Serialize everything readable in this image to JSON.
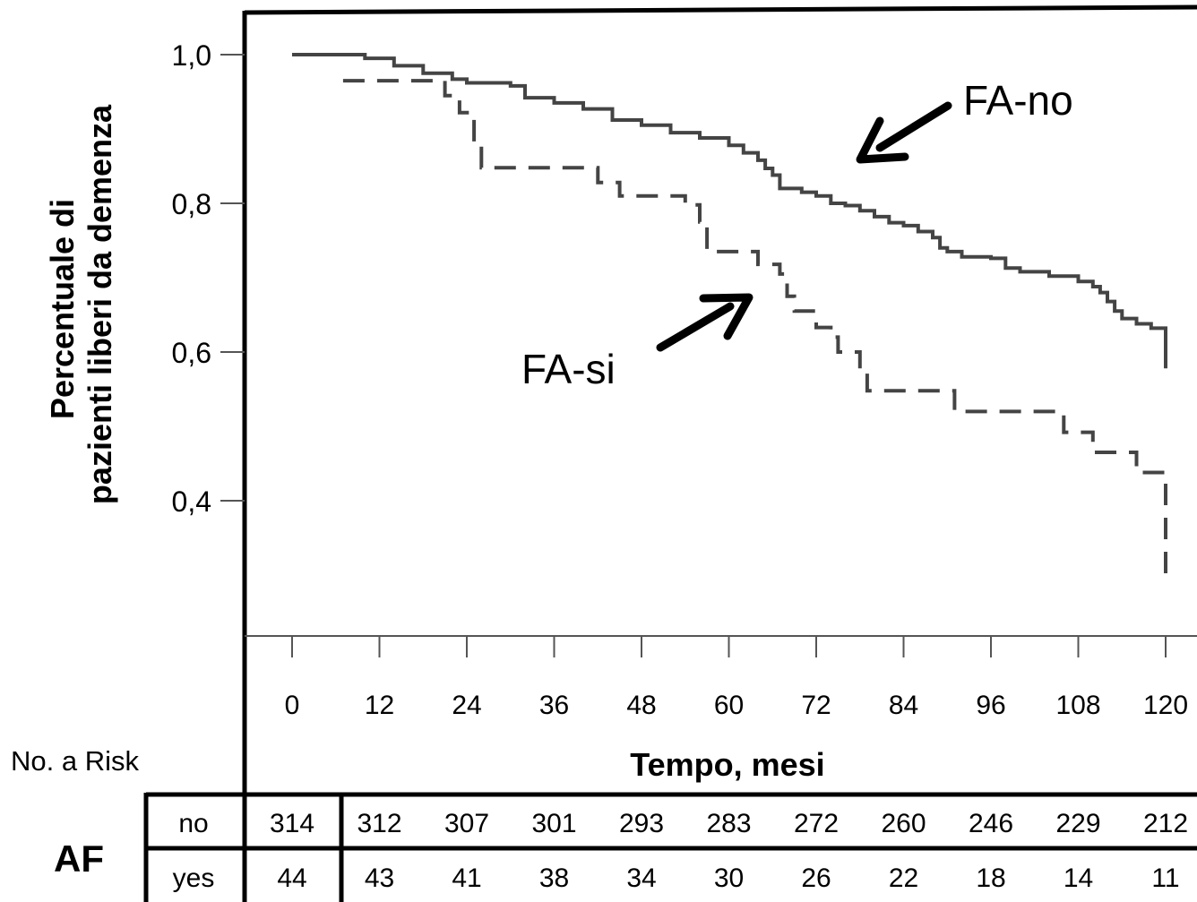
{
  "chart_data": {
    "type": "line",
    "xlabel": "Tempo, mesi",
    "ylabel_lines": [
      "Percentuale di",
      "pazienti liberi da demenza"
    ],
    "x_ticks": [
      0,
      12,
      24,
      36,
      48,
      60,
      72,
      84,
      96,
      108,
      120
    ],
    "y_ticks": [
      "1,0",
      "0,8",
      "0,6",
      "0,4"
    ],
    "y_tick_values": [
      1.0,
      0.8,
      0.6,
      0.4
    ],
    "xlim": [
      0,
      120
    ],
    "ylim": [
      0.2,
      1.0
    ],
    "grid": false,
    "series": [
      {
        "name": "FA-no",
        "style": "solid",
        "points": [
          [
            0,
            1.0
          ],
          [
            6,
            1.0
          ],
          [
            10,
            0.995
          ],
          [
            14,
            0.985
          ],
          [
            18,
            0.975
          ],
          [
            22,
            0.967
          ],
          [
            24,
            0.962
          ],
          [
            30,
            0.958
          ],
          [
            32,
            0.942
          ],
          [
            36,
            0.935
          ],
          [
            40,
            0.927
          ],
          [
            44,
            0.912
          ],
          [
            48,
            0.905
          ],
          [
            52,
            0.895
          ],
          [
            56,
            0.888
          ],
          [
            60,
            0.878
          ],
          [
            62,
            0.868
          ],
          [
            64,
            0.858
          ],
          [
            65,
            0.847
          ],
          [
            66,
            0.838
          ],
          [
            67,
            0.82
          ],
          [
            70,
            0.815
          ],
          [
            72,
            0.81
          ],
          [
            74,
            0.8
          ],
          [
            76,
            0.797
          ],
          [
            78,
            0.79
          ],
          [
            80,
            0.782
          ],
          [
            82,
            0.774
          ],
          [
            84,
            0.77
          ],
          [
            86,
            0.762
          ],
          [
            88,
            0.754
          ],
          [
            89,
            0.74
          ],
          [
            90,
            0.735
          ],
          [
            92,
            0.728
          ],
          [
            96,
            0.726
          ],
          [
            98,
            0.713
          ],
          [
            100,
            0.708
          ],
          [
            104,
            0.702
          ],
          [
            108,
            0.695
          ],
          [
            110,
            0.688
          ],
          [
            111,
            0.68
          ],
          [
            112,
            0.668
          ],
          [
            113,
            0.655
          ],
          [
            114,
            0.645
          ],
          [
            116,
            0.638
          ],
          [
            118,
            0.632
          ],
          [
            120,
            0.632
          ],
          [
            120,
            0.578
          ]
        ]
      },
      {
        "name": "FA-si",
        "style": "dashed",
        "points": [
          [
            7,
            0.965
          ],
          [
            19,
            0.965
          ],
          [
            21,
            0.945
          ],
          [
            23,
            0.922
          ],
          [
            25,
            0.88
          ],
          [
            26,
            0.848
          ],
          [
            40,
            0.848
          ],
          [
            42,
            0.828
          ],
          [
            45,
            0.81
          ],
          [
            54,
            0.798
          ],
          [
            56,
            0.775
          ],
          [
            57,
            0.735
          ],
          [
            63,
            0.735
          ],
          [
            64,
            0.718
          ],
          [
            67,
            0.705
          ],
          [
            68,
            0.675
          ],
          [
            69,
            0.655
          ],
          [
            72,
            0.633
          ],
          [
            74,
            0.62
          ],
          [
            75,
            0.6
          ],
          [
            78,
            0.572
          ],
          [
            79,
            0.548
          ],
          [
            90,
            0.548
          ],
          [
            91,
            0.52
          ],
          [
            105,
            0.52
          ],
          [
            106,
            0.492
          ],
          [
            109,
            0.492
          ],
          [
            110,
            0.465
          ],
          [
            115,
            0.465
          ],
          [
            116,
            0.438
          ],
          [
            119,
            0.438
          ],
          [
            120,
            0.415
          ],
          [
            120,
            0.3
          ]
        ]
      }
    ],
    "annotations": [
      {
        "text": "FA-no"
      },
      {
        "text": "FA-si"
      }
    ],
    "risk_table": {
      "title": "No. a Risk",
      "group_label": "AF",
      "rows": [
        {
          "label": "no",
          "values": [
            "314",
            "312",
            "307",
            "301",
            "293",
            "283",
            "272",
            "260",
            "246",
            "229",
            "212"
          ]
        },
        {
          "label": "yes",
          "values": [
            "44",
            "43",
            "41",
            "38",
            "34",
            "30",
            "26",
            "22",
            "18",
            "14",
            "11"
          ]
        }
      ]
    }
  }
}
